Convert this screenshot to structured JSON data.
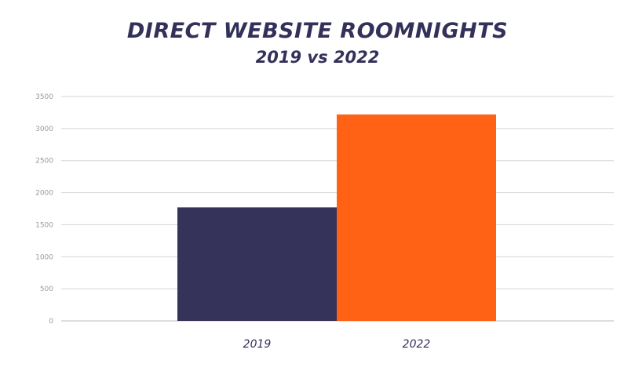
{
  "chart_data": {
    "type": "bar",
    "title": "DIRECT WEBSITE ROOMNIGHTS",
    "subtitle": "2019 vs 2022",
    "xlabel": "",
    "ylabel": "",
    "categories": [
      "2019",
      "2022"
    ],
    "values": [
      1770,
      3220
    ],
    "colors": [
      "#35335a",
      "#ff6115"
    ],
    "ylim": [
      0,
      3500
    ],
    "yticks": [
      0,
      500,
      1000,
      1500,
      2000,
      2500,
      3000,
      3500
    ],
    "grid": true,
    "legend": "none"
  }
}
